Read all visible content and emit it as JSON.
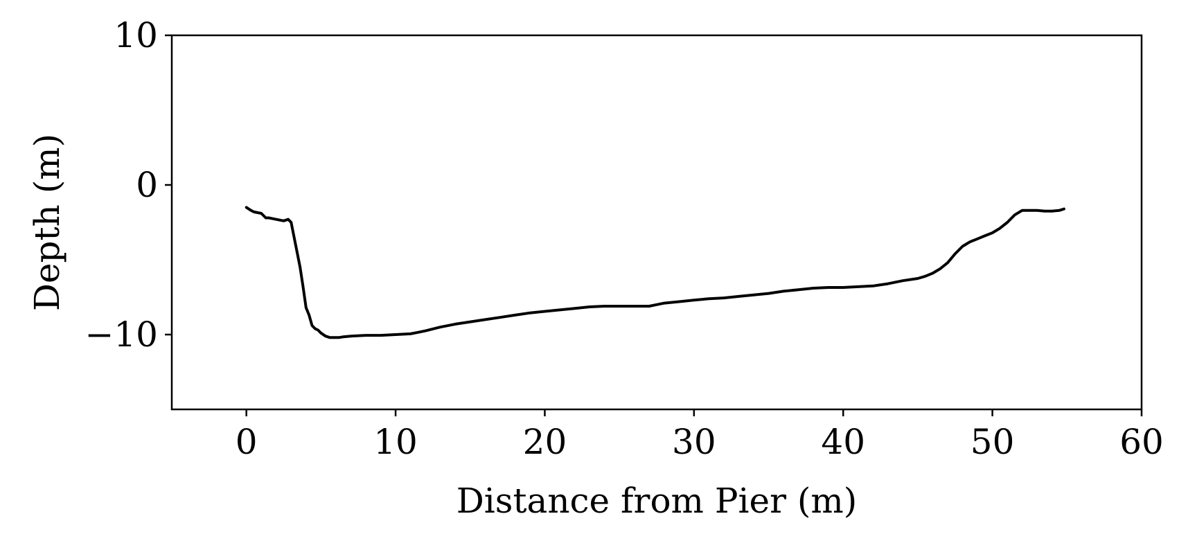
{
  "chart_data": {
    "type": "line",
    "title": "",
    "xlabel": "Distance from Pier (m)",
    "ylabel": "Depth (m)",
    "xlim": [
      -5,
      60
    ],
    "ylim": [
      -15,
      10
    ],
    "xticks": [
      {
        "value": 0,
        "label": "0"
      },
      {
        "value": 10,
        "label": "10"
      },
      {
        "value": 20,
        "label": "20"
      },
      {
        "value": 30,
        "label": "30"
      },
      {
        "value": 40,
        "label": "40"
      },
      {
        "value": 50,
        "label": "50"
      },
      {
        "value": 60,
        "label": "60"
      }
    ],
    "yticks": [
      {
        "value": 10,
        "label": "10"
      },
      {
        "value": 0,
        "label": "0"
      },
      {
        "value": -10,
        "label": "−10"
      }
    ],
    "grid": false,
    "legend": "none",
    "line_color": "#000000",
    "series": [
      {
        "x": [
          0,
          0.3,
          0.5,
          1.0,
          1.3,
          1.5,
          2.0,
          2.5,
          2.8,
          3.0,
          3.2,
          3.4,
          3.6,
          3.8,
          4.0,
          4.2,
          4.4,
          4.6,
          4.8,
          5.0,
          5.3,
          5.6,
          5.9,
          6.2,
          6.5,
          7.0,
          8.0,
          9.0,
          10.0,
          11.0,
          11.5,
          12.0,
          13.0,
          14.0,
          15.0,
          16.0,
          17.0,
          18.0,
          19.0,
          20.0,
          21.0,
          22.0,
          23.0,
          24.0,
          25.0,
          26.0,
          27.0,
          27.5,
          28.0,
          29.0,
          30.0,
          31.0,
          32.0,
          33.0,
          34.0,
          35.0,
          36.0,
          37.0,
          38.0,
          39.0,
          40.0,
          41.0,
          42.0,
          43.0,
          44.0,
          45.0,
          45.5,
          46.0,
          46.5,
          47.0,
          47.5,
          48.0,
          48.5,
          49.0,
          49.5,
          50.0,
          50.5,
          51.0,
          51.5,
          52.0,
          52.5,
          53.0,
          53.5,
          54.0,
          54.5,
          54.8
        ],
        "y": [
          -1.5,
          -1.7,
          -1.8,
          -1.9,
          -2.2,
          -2.2,
          -2.3,
          -2.4,
          -2.3,
          -2.5,
          -3.5,
          -4.5,
          -5.5,
          -6.8,
          -8.2,
          -8.7,
          -9.4,
          -9.6,
          -9.7,
          -9.9,
          -10.1,
          -10.2,
          -10.2,
          -10.2,
          -10.15,
          -10.1,
          -10.05,
          -10.05,
          -10.0,
          -9.95,
          -9.85,
          -9.75,
          -9.5,
          -9.3,
          -9.15,
          -9.0,
          -8.85,
          -8.7,
          -8.55,
          -8.45,
          -8.35,
          -8.25,
          -8.15,
          -8.1,
          -8.1,
          -8.1,
          -8.1,
          -8.0,
          -7.9,
          -7.8,
          -7.7,
          -7.6,
          -7.55,
          -7.45,
          -7.35,
          -7.25,
          -7.1,
          -7.0,
          -6.9,
          -6.85,
          -6.85,
          -6.8,
          -6.75,
          -6.6,
          -6.4,
          -6.25,
          -6.1,
          -5.9,
          -5.6,
          -5.2,
          -4.6,
          -4.1,
          -3.8,
          -3.6,
          -3.4,
          -3.2,
          -2.9,
          -2.5,
          -2.0,
          -1.7,
          -1.7,
          -1.7,
          -1.75,
          -1.75,
          -1.7,
          -1.6
        ]
      }
    ]
  }
}
